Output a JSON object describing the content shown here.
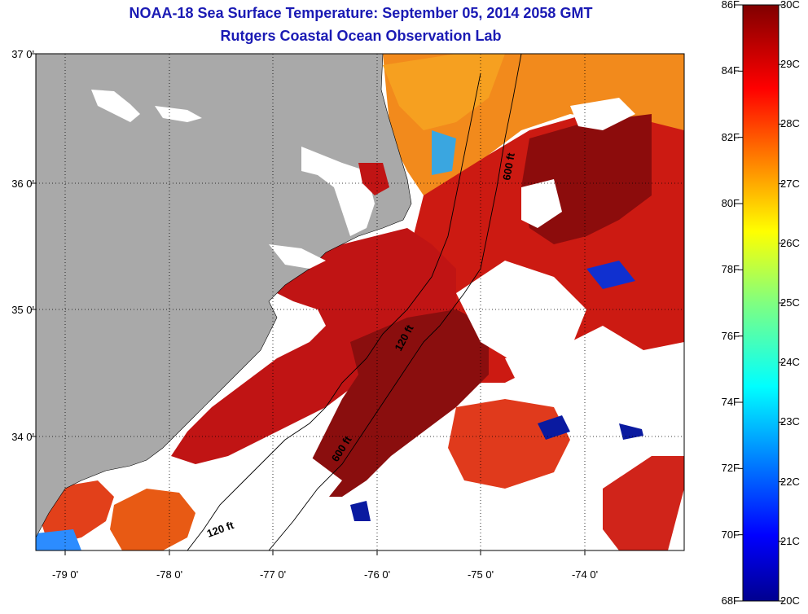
{
  "title": {
    "line1": "NOAA-18 Sea Surface Temperature:  September 05, 2014 2058 GMT",
    "line2": "Rutgers Coastal Ocean Observation Lab"
  },
  "axes": {
    "y_ticks": [
      {
        "lat": 37.0,
        "label": "37 0'"
      },
      {
        "lat": 36.0,
        "label": "36 0'"
      },
      {
        "lat": 35.0,
        "label": "35 0'"
      },
      {
        "lat": 34.0,
        "label": "34 0'"
      }
    ],
    "x_ticks": [
      {
        "lon": -79.0,
        "label": "-79 0'"
      },
      {
        "lon": -78.0,
        "label": "-78 0'"
      },
      {
        "lon": -77.0,
        "label": "-77 0'"
      },
      {
        "lon": -76.0,
        "label": "-76 0'"
      },
      {
        "lon": -75.0,
        "label": "-75 0'"
      },
      {
        "lon": -74.0,
        "label": "-74 0'"
      }
    ],
    "lon_range": [
      -79.3,
      -73.1
    ],
    "lat_range": [
      33.1,
      37.0
    ],
    "grid": "dotted"
  },
  "isobaths": [
    {
      "label": "600 ft"
    },
    {
      "label": "120 ft"
    },
    {
      "label": "600 ft"
    },
    {
      "label": "120 ft"
    }
  ],
  "colorbar": {
    "f_labels": [
      "86F",
      "84F",
      "82F",
      "80F",
      "78F",
      "76F",
      "74F",
      "72F",
      "70F",
      "68F"
    ],
    "f_values": [
      86,
      84,
      82,
      80,
      78,
      76,
      74,
      72,
      70,
      68
    ],
    "c_labels": [
      "30C",
      "29C",
      "28C",
      "27C",
      "26C",
      "25C",
      "24C",
      "23C",
      "22C",
      "21C",
      "20C"
    ],
    "c_values": [
      30,
      29,
      28,
      27,
      26,
      25,
      24,
      23,
      22,
      21,
      20
    ],
    "range_c": [
      20,
      30
    ],
    "colormap": "jet"
  },
  "colors": {
    "land": "#a9a9a9",
    "title": "#1a1ab4",
    "warm_water": "#b01212",
    "hot_water": "#8a0c0c",
    "orange_water": "#f07818",
    "cloud": "#ffffff"
  }
}
